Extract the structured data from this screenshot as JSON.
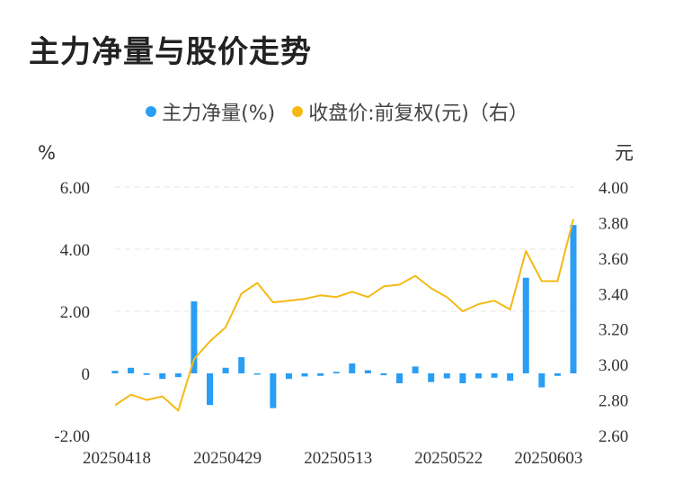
{
  "title": "主力净量与股价走势",
  "chart_data": {
    "type": "bar+line",
    "legend": [
      {
        "name": "主力净量(%)",
        "color": "#2a9df4"
      },
      {
        "name": "收盘价:前复权(元)（右）",
        "color": "#f5b914"
      }
    ],
    "y_left": {
      "unit": "%",
      "ticks": [
        "6.00",
        "4.00",
        "2.00",
        "0",
        "-2.00"
      ],
      "range": [
        -2,
        6
      ]
    },
    "y_right": {
      "unit": "元",
      "ticks": [
        "4.00",
        "3.80",
        "3.60",
        "3.40",
        "3.20",
        "3.00",
        "2.80",
        "2.60"
      ],
      "range": [
        2.6,
        4.0
      ]
    },
    "x_ticks": [
      "20250418",
      "20250429",
      "20250513",
      "20250522",
      "20250603"
    ],
    "x_tick_index": [
      0,
      7,
      14,
      21,
      28
    ],
    "bars": [
      0.08,
      0.18,
      -0.05,
      -0.18,
      -0.12,
      2.32,
      -1.02,
      0.18,
      0.52,
      -0.04,
      -1.12,
      -0.18,
      -0.1,
      -0.08,
      0.05,
      0.32,
      0.1,
      -0.06,
      -0.32,
      0.22,
      -0.28,
      -0.16,
      -0.32,
      -0.16,
      -0.14,
      -0.24,
      3.08,
      -0.45,
      -0.08,
      4.78
    ],
    "price": [
      2.77,
      2.83,
      2.8,
      2.82,
      2.74,
      3.03,
      3.13,
      3.21,
      3.4,
      3.46,
      3.35,
      3.36,
      3.37,
      3.39,
      3.38,
      3.41,
      3.38,
      3.44,
      3.45,
      3.5,
      3.43,
      3.38,
      3.3,
      3.34,
      3.36,
      3.31,
      3.64,
      3.47,
      3.47,
      3.82
    ]
  }
}
